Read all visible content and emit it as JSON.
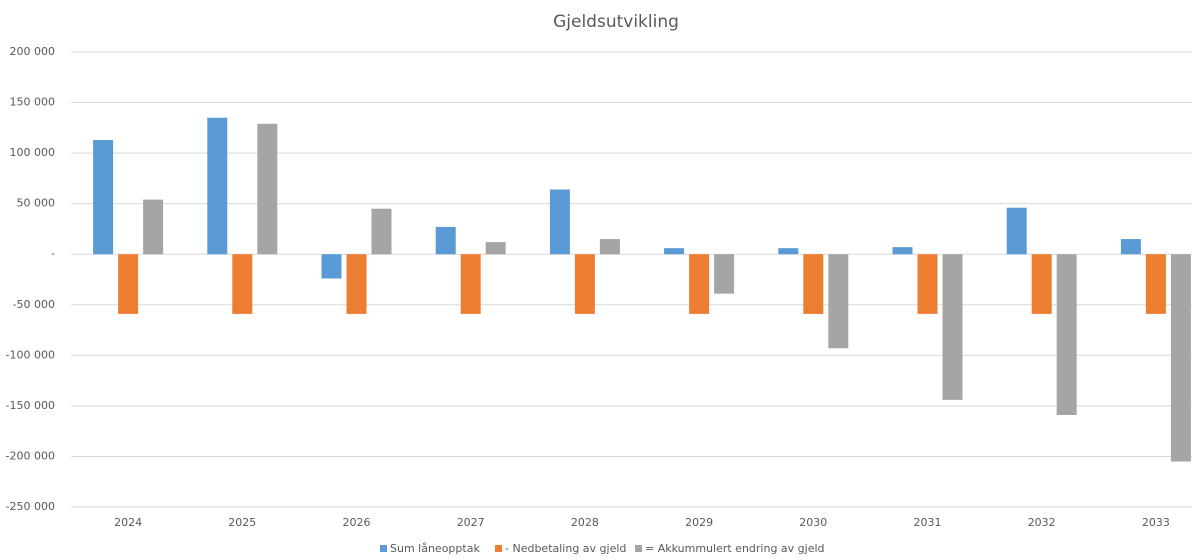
{
  "chart_data": {
    "type": "bar",
    "title": "Gjeldsutvikling",
    "categories": [
      "2024",
      "2025",
      "2026",
      "2027",
      "2028",
      "2029",
      "2030",
      "2031",
      "2032",
      "2033"
    ],
    "series": [
      {
        "name": "Sum låneopptak",
        "color": "#5b9bd5",
        "values": [
          113000,
          135000,
          -24000,
          27000,
          64000,
          6000,
          6000,
          7000,
          46000,
          15000
        ]
      },
      {
        "name": "- Nedbetaling av gjeld",
        "color": "#ed7d31",
        "values": [
          -59000,
          -59000,
          -59000,
          -59000,
          -59000,
          -59000,
          -59000,
          -59000,
          -59000,
          -59000
        ]
      },
      {
        "name": "= Akkummulert endring av gjeld",
        "color": "#a5a5a5",
        "values": [
          54000,
          129000,
          45000,
          12000,
          15000,
          -39000,
          -93000,
          -144000,
          -159000,
          -205000
        ]
      }
    ],
    "ylim": [
      -250000,
      200000
    ],
    "yticks": [
      {
        "value": -250000,
        "label": "-250 000"
      },
      {
        "value": -200000,
        "label": "-200 000"
      },
      {
        "value": -150000,
        "label": "-150 000"
      },
      {
        "value": -100000,
        "label": "-100 000"
      },
      {
        "value": -50000,
        "label": "-50 000"
      },
      {
        "value": 0,
        "label": "-"
      },
      {
        "value": 50000,
        "label": "50 000"
      },
      {
        "value": 100000,
        "label": "100 000"
      },
      {
        "value": 150000,
        "label": "150 000"
      },
      {
        "value": 200000,
        "label": "200 000"
      }
    ],
    "grid": true,
    "legend": "bottom"
  }
}
